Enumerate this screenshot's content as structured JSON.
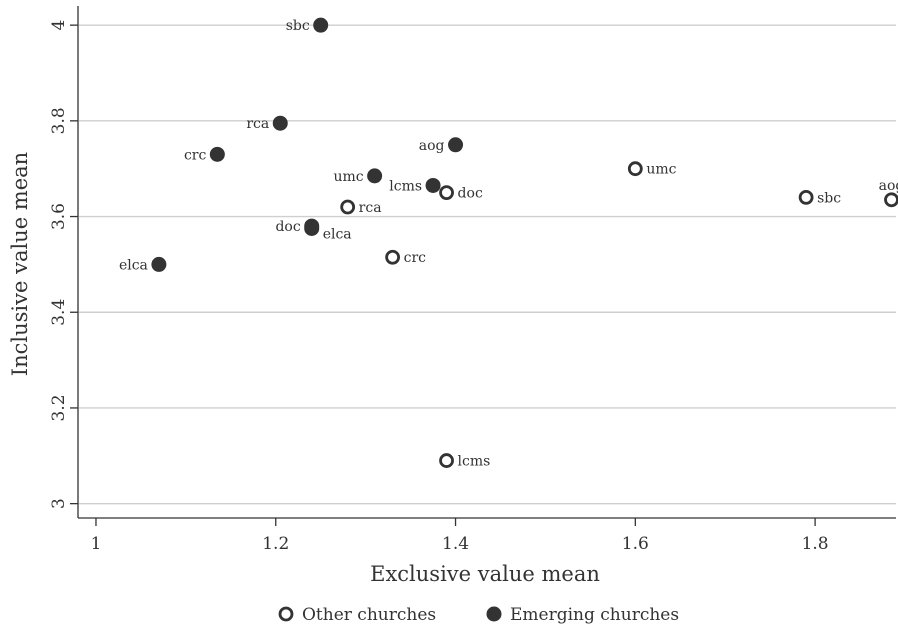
{
  "chart_data": {
    "type": "scatter",
    "xlabel": "Exclusive value mean",
    "ylabel": "Inclusive value mean",
    "xlim": [
      0.98,
      1.89
    ],
    "ylim": [
      2.97,
      4.04
    ],
    "xticks": [
      1,
      1.2,
      1.4,
      1.6,
      1.8
    ],
    "xtick_labels": [
      "1",
      "1.2",
      "1.4",
      "1.6",
      "1.8"
    ],
    "yticks": [
      3,
      3.2,
      3.4,
      3.6,
      3.8,
      4
    ],
    "ytick_labels": [
      "3",
      "3.2",
      "3.4",
      "3.6",
      "3.8",
      "4"
    ],
    "grid": "horizontal",
    "legend_position": "bottom",
    "series": [
      {
        "name": "Other churches",
        "marker": "hollow-circle",
        "color": "#333333",
        "points": [
          {
            "label": "umc",
            "x": 1.6,
            "y": 3.7,
            "label_side": "right"
          },
          {
            "label": "sbc",
            "x": 1.79,
            "y": 3.64,
            "label_side": "right"
          },
          {
            "label": "aog",
            "x": 1.885,
            "y": 3.635,
            "label_side": "above"
          },
          {
            "label": "doc",
            "x": 1.39,
            "y": 3.65,
            "label_side": "right"
          },
          {
            "label": "rca",
            "x": 1.28,
            "y": 3.62,
            "label_side": "right"
          },
          {
            "label": "crc",
            "x": 1.33,
            "y": 3.515,
            "label_side": "right"
          },
          {
            "label": "lcms",
            "x": 1.39,
            "y": 3.09,
            "label_side": "right"
          }
        ]
      },
      {
        "name": "Emerging churches",
        "marker": "filled-circle",
        "color": "#333333",
        "points": [
          {
            "label": "sbc",
            "x": 1.25,
            "y": 4.0,
            "label_side": "left"
          },
          {
            "label": "rca",
            "x": 1.205,
            "y": 3.795,
            "label_side": "left"
          },
          {
            "label": "crc",
            "x": 1.135,
            "y": 3.73,
            "label_side": "left"
          },
          {
            "label": "aog",
            "x": 1.4,
            "y": 3.75,
            "label_side": "left"
          },
          {
            "label": "umc",
            "x": 1.31,
            "y": 3.685,
            "label_side": "left"
          },
          {
            "label": "lcms",
            "x": 1.375,
            "y": 3.665,
            "label_side": "left"
          },
          {
            "label": "doc",
            "x": 1.24,
            "y": 3.58,
            "label_side": "left"
          },
          {
            "label": "elca",
            "x": 1.24,
            "y": 3.575,
            "label_side": "right"
          },
          {
            "label": "elca",
            "x": 1.07,
            "y": 3.5,
            "label_side": "left"
          }
        ]
      }
    ]
  }
}
